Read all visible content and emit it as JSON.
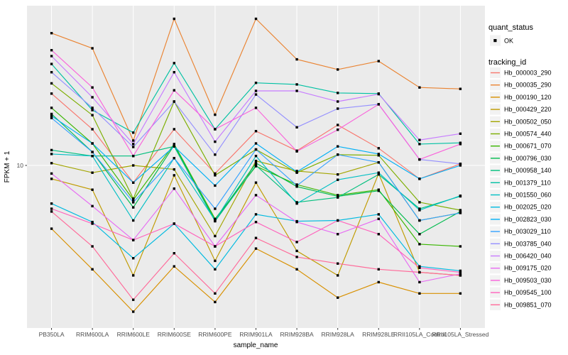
{
  "figure": {
    "panel_background": "#EBEBEB",
    "grid_color": "#FFFFFF",
    "axis_text_color": "#4D4D4D",
    "title_text_color": "#000000",
    "point_color": "#000000",
    "legend_key_fill": "#F2F2F2",
    "tick_color": "#333333"
  },
  "axes": {
    "x_title": "sample_name",
    "y_title": "FPKM + 1",
    "y_tick_label": "10",
    "x_categories": [
      "PB350LA",
      "RRIM600LA",
      "RRIM600LE",
      "RRIM600SE",
      "RRIM600PE",
      "RRIM901LA",
      "RRIM928BA",
      "RRIM928LA",
      "RRIM928LE",
      "RRII105LA_Control",
      "RRII105LA_Stressed"
    ]
  },
  "legend": {
    "quant_status_title": "quant_status",
    "ok_label": "OK",
    "tracking_title": "tracking_id"
  },
  "chart_data": {
    "type": "line",
    "title": "",
    "xlabel": "sample_name",
    "ylabel": "FPKM + 1",
    "yscale": "log10",
    "y_major_break": 10,
    "ylim_approx": [
      1.2,
      79
    ],
    "grid": true,
    "legend_position": "right",
    "x": [
      "PB350LA",
      "RRIM600LA",
      "RRIM600LE",
      "RRIM600SE",
      "RRIM600PE",
      "RRIM901LA",
      "RRIM928BA",
      "RRIM928LA",
      "RRIM928LE",
      "RRII105LA_Control",
      "RRII105LA_Stressed"
    ],
    "series": [
      {
        "name": "Hb_000003_290",
        "color": "#F8766D",
        "values": [
          25.4,
          16.0,
          8.0,
          16.0,
          9.0,
          15.6,
          12.1,
          16.9,
          12.5,
          8.4,
          10.2
        ]
      },
      {
        "name": "Hb_000035_290",
        "color": "#EA8331",
        "values": [
          55.6,
          45.7,
          13.8,
          67.0,
          19.3,
          67.0,
          39.6,
          34.7,
          38.7,
          27.5,
          27.0
        ]
      },
      {
        "name": "Hb_000190_120",
        "color": "#D89000",
        "values": [
          4.4,
          2.6,
          1.5,
          2.7,
          1.7,
          3.4,
          2.6,
          1.8,
          2.2,
          1.9,
          1.9
        ]
      },
      {
        "name": "Hb_000429_220",
        "color": "#C09B00",
        "values": [
          8.4,
          7.3,
          2.4,
          8.8,
          2.9,
          8.0,
          3.3,
          2.4,
          9.0,
          2.5,
          2.4
        ]
      },
      {
        "name": "Hb_000502_050",
        "color": "#A3A500",
        "values": [
          10.3,
          9.1,
          10.0,
          9.5,
          4.0,
          10.6,
          9.3,
          8.9,
          10.4,
          4.9,
          5.4
        ]
      },
      {
        "name": "Hb_000574_440",
        "color": "#7CAE00",
        "values": [
          29.0,
          19.2,
          6.5,
          22.9,
          8.8,
          12.3,
          9.1,
          11.5,
          11.4,
          6.2,
          5.6
        ]
      },
      {
        "name": "Hb_000671_070",
        "color": "#39B600",
        "values": [
          21.1,
          13.3,
          6.4,
          13.2,
          5.0,
          9.9,
          7.8,
          6.8,
          7.3,
          3.6,
          3.5
        ]
      },
      {
        "name": "Hb_000796_030",
        "color": "#00BB4E",
        "values": [
          19.5,
          11.9,
          5.8,
          13.0,
          4.9,
          10.3,
          7.6,
          6.7,
          7.2,
          4.1,
          5.5
        ]
      },
      {
        "name": "Hb_000958_140",
        "color": "#00BF7D",
        "values": [
          12.2,
          11.3,
          11.3,
          12.8,
          4.85,
          10.0,
          6.2,
          6.6,
          8.9,
          5.7,
          6.7
        ]
      },
      {
        "name": "Hb_001379_110",
        "color": "#00C1A3",
        "values": [
          37.3,
          20.5,
          15.3,
          37.7,
          16.0,
          29.2,
          28.6,
          25.6,
          25.4,
          13.2,
          13.4
        ]
      },
      {
        "name": "Hb_001550_060",
        "color": "#00BFC4",
        "values": [
          11.6,
          11.3,
          4.9,
          11.0,
          4.9,
          11.3,
          6.1,
          8.3,
          9.1,
          5.6,
          6.75
        ]
      },
      {
        "name": "Hb_002025_020",
        "color": "#00BAE0",
        "values": [
          6.1,
          4.8,
          3.0,
          4.7,
          2.6,
          5.3,
          4.85,
          4.9,
          5.3,
          2.7,
          2.55
        ]
      },
      {
        "name": "Hb_002823_030",
        "color": "#00B0F6",
        "values": [
          19.0,
          13.3,
          8.0,
          12.8,
          7.7,
          13.3,
          9.2,
          12.8,
          11.6,
          8.4,
          10.0
        ]
      },
      {
        "name": "Hb_003029_110",
        "color": "#35A2FF",
        "values": [
          18.5,
          11.9,
          6.2,
          11.0,
          5.7,
          12.3,
          7.7,
          11.5,
          10.4,
          4.9,
          5.4
        ]
      },
      {
        "name": "Hb_003785_040",
        "color": "#9590FF",
        "values": [
          33.5,
          21.1,
          12.7,
          22.9,
          11.5,
          25.1,
          16.4,
          20.9,
          22.1,
          10.8,
          10.2
        ]
      },
      {
        "name": "Hb_006420_040",
        "color": "#C77CFF",
        "values": [
          41.3,
          24.2,
          13.2,
          33.5,
          13.6,
          26.3,
          26.3,
          22.9,
          25.2,
          13.9,
          15.1
        ]
      },
      {
        "name": "Hb_009175_020",
        "color": "#E76BF3",
        "values": [
          9.0,
          5.9,
          3.8,
          7.4,
          3.5,
          6.8,
          4.8,
          4.1,
          5.0,
          2.2,
          2.45
        ]
      },
      {
        "name": "Hb_009503_030",
        "color": "#FA62DB",
        "values": [
          44.6,
          27.5,
          11.3,
          26.5,
          16.0,
          21.1,
          12.0,
          15.9,
          22.1,
          10.8,
          13.2
        ]
      },
      {
        "name": "Hb_009545_100",
        "color": "#FF62BC",
        "values": [
          5.7,
          4.7,
          3.8,
          4.7,
          3.5,
          4.8,
          3.7,
          4.9,
          4.1,
          2.65,
          2.5
        ]
      },
      {
        "name": "Hb_009851_070",
        "color": "#FF6A9A",
        "values": [
          5.5,
          3.5,
          1.75,
          3.2,
          1.9,
          3.9,
          3.05,
          2.8,
          2.6,
          2.5,
          2.4
        ]
      }
    ]
  }
}
